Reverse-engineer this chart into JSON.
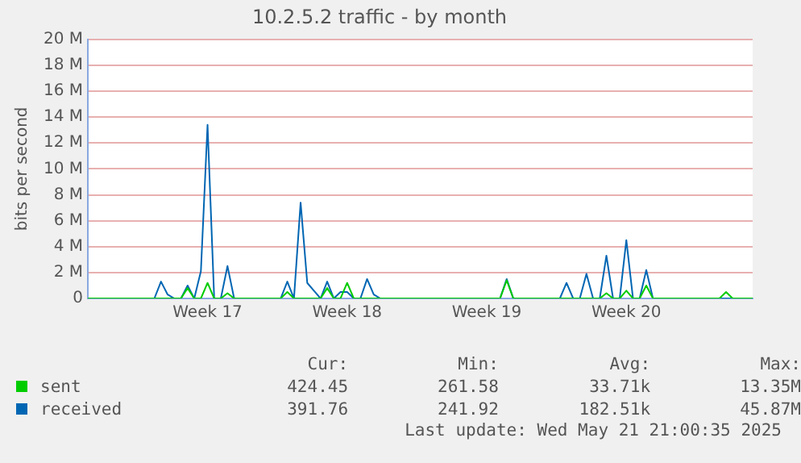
{
  "chart_data": {
    "type": "line",
    "title": "10.2.5.2 traffic - by month",
    "ylabel": "bits per second",
    "categories": [
      null,
      null,
      null,
      null,
      null,
      null,
      null,
      null,
      null,
      null,
      null,
      null,
      null,
      null,
      null,
      null,
      null,
      null,
      "Week 17",
      null,
      null,
      null,
      null,
      null,
      null,
      null,
      null,
      null,
      null,
      null,
      null,
      null,
      null,
      null,
      null,
      null,
      null,
      null,
      null,
      "Week 18",
      null,
      null,
      null,
      null,
      null,
      null,
      null,
      null,
      null,
      null,
      null,
      null,
      null,
      null,
      null,
      null,
      null,
      null,
      null,
      null,
      "Week 19",
      null,
      null,
      null,
      null,
      null,
      null,
      null,
      null,
      null,
      null,
      null,
      null,
      null,
      null,
      null,
      null,
      null,
      null,
      null,
      null,
      "Week 20",
      null,
      null,
      null,
      null,
      null,
      null,
      null,
      null,
      null,
      null,
      null,
      null,
      null,
      null,
      null,
      null,
      null,
      null,
      null
    ],
    "ylim": [
      0,
      20
    ],
    "yticks": [
      0,
      {
        "value": 2,
        "label": "2 M"
      },
      {
        "value": 4,
        "label": "4 M"
      },
      {
        "value": 6,
        "label": "6 M"
      },
      {
        "value": 8,
        "label": "8 M"
      },
      {
        "value": 10,
        "label": "10 M"
      },
      {
        "value": 12,
        "label": "12 M"
      },
      {
        "value": 14,
        "label": "14 M"
      },
      {
        "value": 16,
        "label": "16 M"
      },
      {
        "value": 18,
        "label": "18 M"
      },
      {
        "value": 20,
        "label": "20 M"
      }
    ],
    "grid": "y",
    "legend": "bottom",
    "marker": "none",
    "line_style": "solid",
    "series": [
      {
        "name": "sent",
        "color": "#00cc00",
        "values": [
          0,
          0,
          0,
          0,
          0,
          0,
          0,
          0,
          0,
          0,
          0,
          0,
          0,
          0,
          0,
          0.8,
          0,
          0,
          1.2,
          0,
          0,
          0.4,
          0,
          0,
          0,
          0,
          0,
          0,
          0,
          0,
          0.5,
          0,
          0,
          0,
          0,
          0,
          0.8,
          0,
          0,
          1.2,
          0,
          0,
          0,
          0,
          0,
          0,
          0,
          0,
          0,
          0,
          0,
          0,
          0,
          0,
          0,
          0,
          0,
          0,
          0,
          0,
          0,
          0,
          0,
          1.4,
          0,
          0,
          0,
          0,
          0,
          0,
          0,
          0,
          0,
          0,
          0,
          0,
          0,
          0,
          0.4,
          0,
          0,
          0.6,
          0,
          0,
          1.0,
          0,
          0,
          0,
          0,
          0,
          0,
          0,
          0,
          0,
          0,
          0,
          0.5,
          0,
          0,
          0,
          0
        ]
      },
      {
        "name": "received",
        "color": "#0066b3",
        "values": [
          0,
          0,
          0,
          0,
          0,
          0,
          0,
          0,
          0,
          0,
          0,
          1.3,
          0.3,
          0,
          0,
          1.0,
          0,
          2.1,
          13.4,
          0,
          0,
          2.5,
          0,
          0,
          0,
          0,
          0,
          0,
          0,
          0,
          1.3,
          0,
          7.4,
          1.2,
          0.6,
          0,
          1.3,
          0,
          0.5,
          0.5,
          0,
          0,
          1.5,
          0.3,
          0,
          0,
          0,
          0,
          0,
          0,
          0,
          0,
          0,
          0,
          0,
          0,
          0,
          0,
          0,
          0,
          0,
          0,
          0,
          1.5,
          0,
          0,
          0,
          0,
          0,
          0,
          0,
          0,
          1.2,
          0,
          0,
          1.9,
          0,
          0,
          3.3,
          0,
          0,
          4.5,
          0,
          0,
          2.2,
          0,
          0,
          0,
          0,
          0,
          0,
          0,
          0,
          0,
          0,
          0,
          0,
          0,
          0,
          0,
          0
        ]
      }
    ],
    "annotations": [
      "Cur:",
      "Min:",
      "Avg:",
      "Max:",
      "424.45",
      "261.58",
      "33.71k",
      "13.35M",
      "391.76",
      "241.92",
      "182.51k",
      "45.87M",
      "Last update: Wed May 21 21:00:35 2025"
    ]
  }
}
